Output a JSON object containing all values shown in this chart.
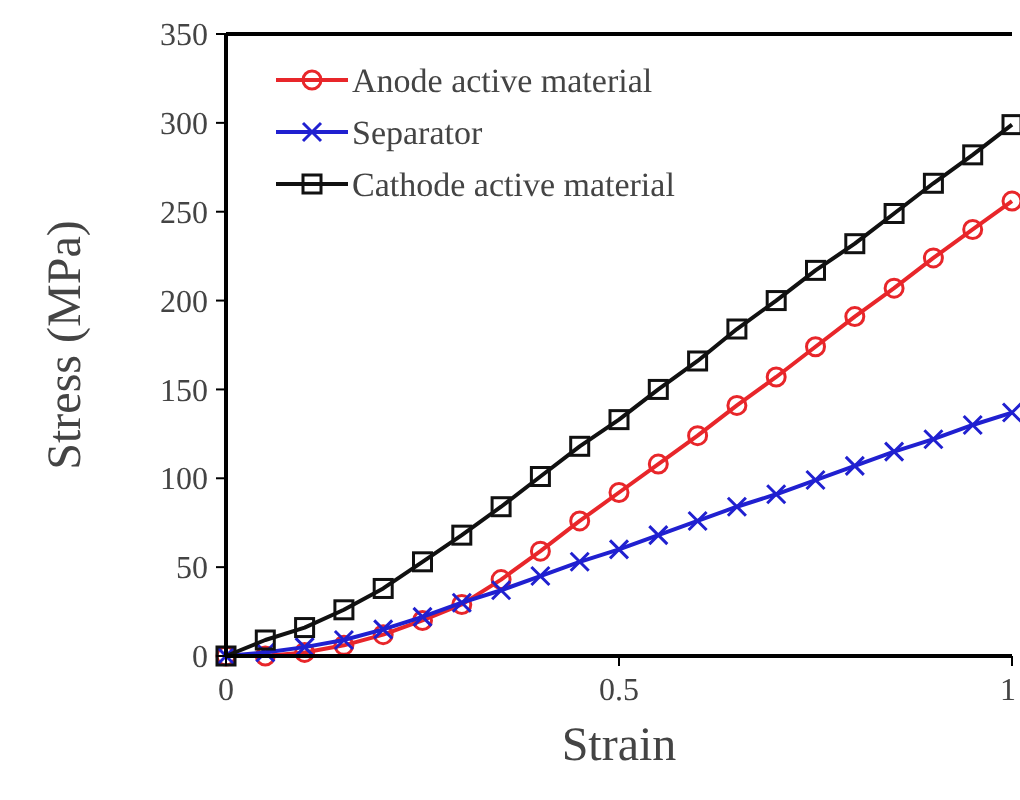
{
  "chart_data": {
    "type": "line",
    "xlabel": "Strain",
    "ylabel": "Stress (MPa)",
    "x": [
      0,
      0.05,
      0.1,
      0.15,
      0.2,
      0.25,
      0.3,
      0.35,
      0.4,
      0.45,
      0.5,
      0.55,
      0.6,
      0.65,
      0.7,
      0.75,
      0.8,
      0.85,
      0.9,
      0.95,
      1
    ],
    "series": [
      {
        "name": "Anode active material",
        "color": "#e8262a",
        "marker": "circle",
        "values": [
          0,
          0,
          2,
          6,
          12,
          20,
          29,
          43,
          59,
          76,
          92,
          108,
          124,
          141,
          157,
          174,
          191,
          207,
          224,
          240,
          256
        ]
      },
      {
        "name": "Separator",
        "color": "#2020d0",
        "marker": "cross",
        "values": [
          0,
          2,
          5,
          9,
          15,
          22,
          30,
          37,
          45,
          53,
          60,
          68,
          76,
          84,
          91,
          99,
          107,
          115,
          122,
          130,
          137
        ]
      },
      {
        "name": "Cathode active material",
        "color": "#111111",
        "marker": "square",
        "values": [
          0,
          9,
          16,
          26,
          38,
          53,
          68,
          84,
          101,
          118,
          133,
          150,
          166,
          184,
          200,
          217,
          232,
          249,
          266,
          282,
          299
        ]
      }
    ],
    "xlim": [
      0,
      1
    ],
    "xticks": [
      0,
      0.5,
      1
    ],
    "ylim": [
      0,
      350
    ],
    "yticks": [
      0,
      50,
      100,
      150,
      200,
      250,
      300,
      350
    ],
    "legend": "top left",
    "grid": false
  }
}
